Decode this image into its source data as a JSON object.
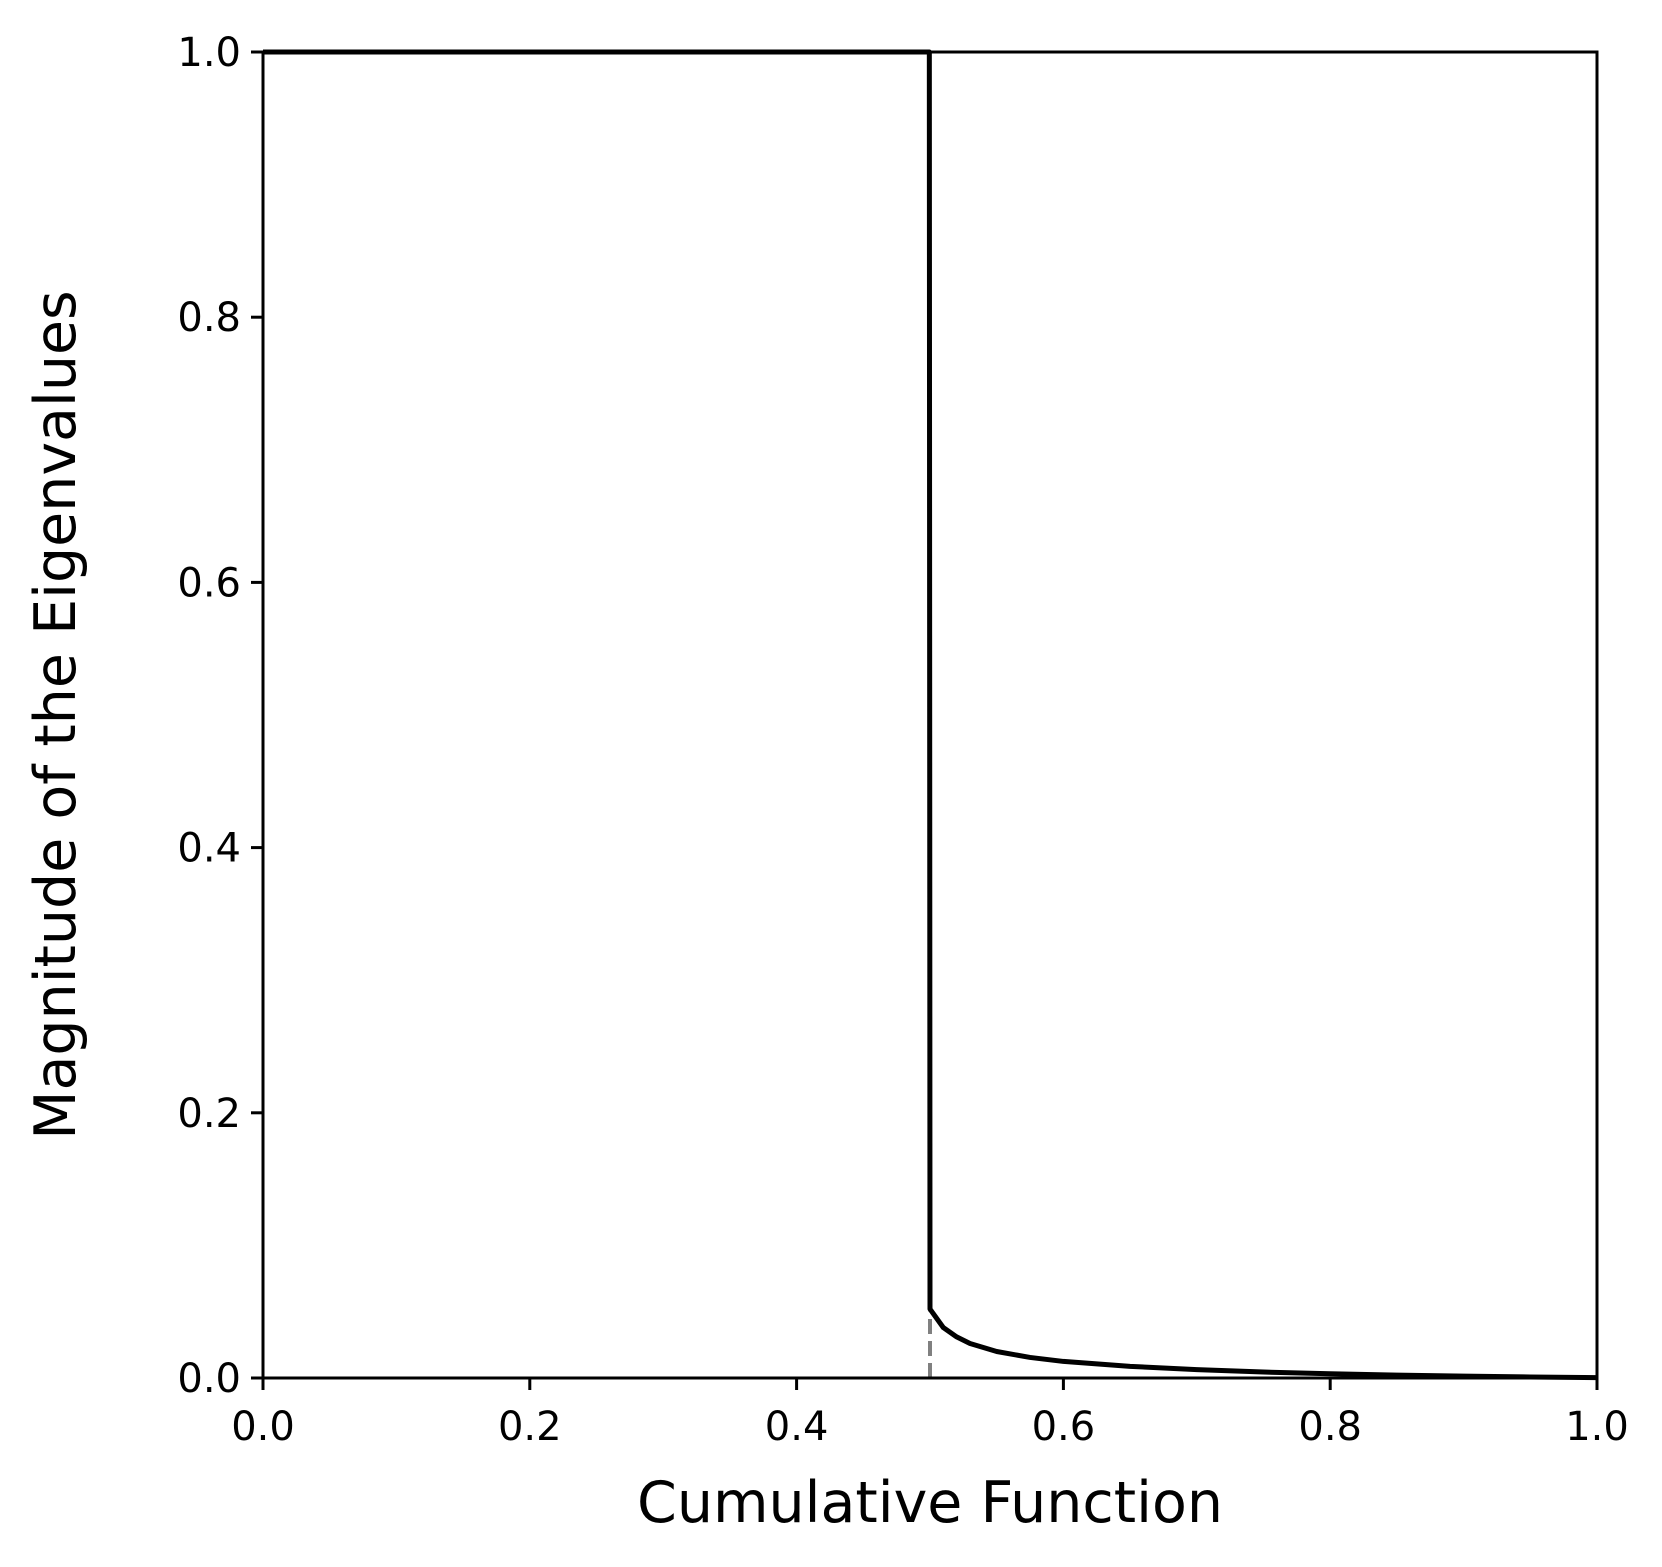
{
  "chart_data": {
    "type": "line",
    "title": "",
    "xlabel": "Cumulative Function",
    "ylabel": "Magnitude of the Eigenvalues",
    "xlim": [
      0.0,
      1.0
    ],
    "ylim": [
      0.0,
      1.0
    ],
    "x_ticks": [
      "0.0",
      "0.2",
      "0.4",
      "0.6",
      "0.8",
      "1.0"
    ],
    "y_ticks": [
      "0.0",
      "0.2",
      "0.4",
      "0.6",
      "0.8",
      "1.0"
    ],
    "grid": false,
    "legend": "none",
    "series": [
      {
        "style": "solid",
        "color": "#000000",
        "x": [
          0.0,
          0.1,
          0.2,
          0.3,
          0.4,
          0.499,
          0.4995,
          0.5,
          0.51,
          0.52,
          0.53,
          0.55,
          0.575,
          0.6,
          0.65,
          0.7,
          0.75,
          0.8,
          0.85,
          0.9,
          0.95,
          1.0
        ],
        "y": [
          1.0,
          1.0,
          1.0,
          1.0,
          1.0,
          1.0,
          1.0,
          0.052,
          0.038,
          0.031,
          0.026,
          0.02,
          0.0155,
          0.0125,
          0.0088,
          0.0063,
          0.0045,
          0.0032,
          0.0022,
          0.0014,
          0.0008,
          0.0003
        ]
      },
      {
        "style": "dashed",
        "color": "#808080",
        "x": [
          0.5,
          0.5
        ],
        "y": [
          0.0,
          0.05
        ]
      }
    ]
  }
}
